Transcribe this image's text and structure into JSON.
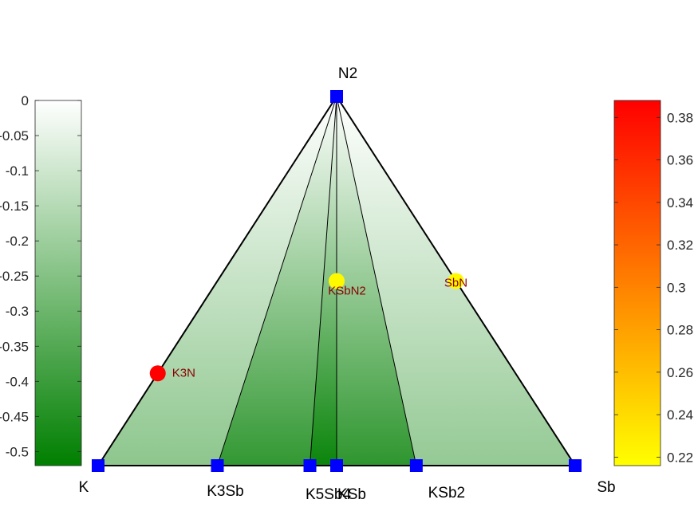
{
  "chart_data": {
    "type": "ternary-phase-diagram",
    "vertices": {
      "left": "K",
      "right": "Sb",
      "top": "N2"
    },
    "stable_phases": [
      {
        "name": "K",
        "position": 0.0
      },
      {
        "name": "K3Sb",
        "position": 0.25
      },
      {
        "name": "K5Sb4",
        "position": 0.444
      },
      {
        "name": "KSb",
        "position": 0.5
      },
      {
        "name": "KSb2",
        "position": 0.667
      },
      {
        "name": "Sb",
        "position": 1.0
      }
    ],
    "tie_lines_to_N2": [
      "K3Sb",
      "K5Sb4",
      "KSb",
      "KSb2"
    ],
    "unstable_phases": [
      {
        "name": "K3N",
        "composition": {
          "K": 0.75,
          "Sb": 0.0,
          "N": 0.25
        },
        "e_above_hull": 0.388
      },
      {
        "name": "KSbN2",
        "composition": {
          "K": 0.25,
          "Sb": 0.25,
          "N": 0.5
        },
        "e_above_hull": 0.22
      },
      {
        "name": "SbN",
        "composition": {
          "K": 0.0,
          "Sb": 0.5,
          "N": 0.5
        },
        "e_above_hull": 0.22
      }
    ],
    "formation_energy_colorbar": {
      "range": [
        -0.52,
        0
      ],
      "ticks": [
        "0",
        "-0.05",
        "-0.1",
        "-0.15",
        "-0.2",
        "-0.25",
        "-0.3",
        "-0.35",
        "-0.4",
        "-0.45",
        "-0.5"
      ],
      "tick_values": [
        0,
        -0.05,
        -0.1,
        -0.15,
        -0.2,
        -0.25,
        -0.3,
        -0.35,
        -0.4,
        -0.45,
        -0.5
      ],
      "colors": {
        "low": "#007f00",
        "high": "#ffffff"
      }
    },
    "ehull_colorbar": {
      "range": [
        0.216,
        0.388
      ],
      "ticks": [
        "0.22",
        "0.24",
        "0.26",
        "0.28",
        "0.3",
        "0.32",
        "0.34",
        "0.36",
        "0.38"
      ],
      "tick_values": [
        0.22,
        0.24,
        0.26,
        0.28,
        0.3,
        0.32,
        0.34,
        0.36,
        0.38
      ],
      "colors": {
        "low": "#ffff00",
        "high": "#ff0000"
      }
    },
    "colors": {
      "stable_marker": "#0000ff",
      "unstable_label": "#8b0000",
      "edge": "#000000"
    }
  }
}
